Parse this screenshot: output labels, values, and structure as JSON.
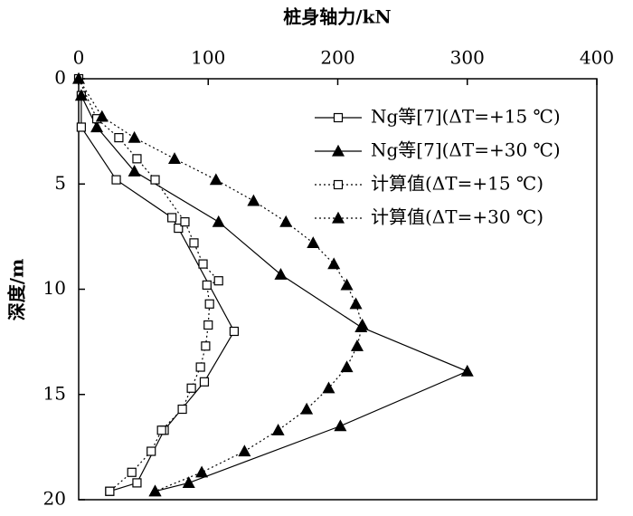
{
  "chart_data": {
    "type": "line",
    "x_label": "桩身轴力/kN",
    "y_label": "深度/m",
    "xlim": [
      0,
      400
    ],
    "xticks": [
      0,
      100,
      200,
      300,
      400
    ],
    "ylim": [
      0,
      20
    ],
    "yticks": [
      0,
      5,
      10,
      15,
      20
    ],
    "y_inverted": true,
    "x_axis_position": "top",
    "legend": "upper right",
    "series": [
      {
        "name": "Ng等[7](ΔT=+15 ℃)",
        "color": "#000000",
        "linestyle": "solid",
        "marker": "square",
        "filled": false,
        "x": [
          2,
          2,
          29,
          72,
          77,
          120,
          97,
          66,
          45,
          24
        ],
        "values": [
          0.8,
          2.3,
          4.8,
          6.6,
          7.1,
          12,
          14.4,
          16.7,
          19.2,
          19.6
        ]
      },
      {
        "name": "Ng等[7](ΔT=+30 ℃)",
        "color": "#000000",
        "linestyle": "solid",
        "marker": "triangle",
        "filled": true,
        "x": [
          2,
          14,
          43,
          108,
          156,
          218,
          300,
          202,
          85,
          59
        ],
        "values": [
          0.8,
          2.3,
          4.4,
          6.8,
          9.3,
          11.8,
          13.9,
          16.5,
          19.2,
          19.6
        ]
      },
      {
        "name": "计算值(ΔT=+15 ℃)",
        "color": "#000000",
        "linestyle": "dotted",
        "marker": "square",
        "filled": false,
        "x": [
          0,
          14,
          31,
          45,
          59,
          82,
          89,
          96,
          108,
          99,
          101,
          100,
          98,
          94,
          87,
          80,
          64,
          56,
          41,
          24
        ],
        "values": [
          0,
          1.9,
          2.8,
          3.8,
          4.8,
          6.8,
          7.8,
          8.8,
          9.6,
          9.8,
          10.7,
          11.7,
          12.7,
          13.7,
          14.7,
          15.7,
          16.7,
          17.7,
          18.7,
          19.6
        ]
      },
      {
        "name": "计算值(ΔT=+30 ℃)",
        "color": "#000000",
        "linestyle": "dotted",
        "marker": "triangle",
        "filled": true,
        "x": [
          0,
          18,
          43,
          74,
          106,
          135,
          160,
          181,
          197,
          207,
          214,
          219,
          215,
          207,
          193,
          176,
          154,
          128,
          95,
          59
        ],
        "values": [
          0,
          1.8,
          2.8,
          3.8,
          4.8,
          5.8,
          6.8,
          7.8,
          8.8,
          9.8,
          10.7,
          11.7,
          12.7,
          13.7,
          14.7,
          15.7,
          16.7,
          17.7,
          18.7,
          19.6
        ]
      }
    ]
  }
}
